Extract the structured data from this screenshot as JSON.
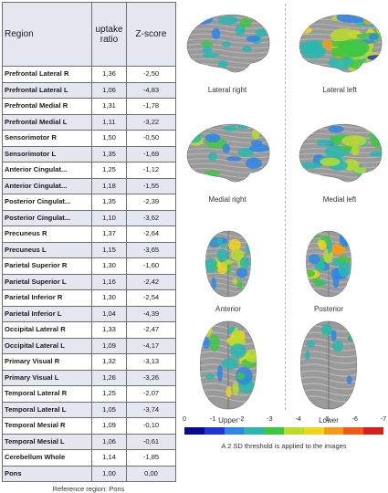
{
  "table": {
    "headers": [
      "Region",
      "uptake ratio",
      "Z-score"
    ],
    "rows": [
      [
        "Prefrontal Lateral R",
        "1,36",
        "-2,50"
      ],
      [
        "Prefrontal Lateral L",
        "1,06",
        "-4,83"
      ],
      [
        "Prefrontal Medial R",
        "1,31",
        "-1,78"
      ],
      [
        "Prefrontal Medial L",
        "1,11",
        "-3,22"
      ],
      [
        "Sensorimotor R",
        "1,50",
        "-0,50"
      ],
      [
        "Sensorimotor L",
        "1,35",
        "-1,69"
      ],
      [
        "Anterior Cingulat...",
        "1,25",
        "-1,12"
      ],
      [
        "Anterior Cingulat...",
        "1,18",
        "-1,55"
      ],
      [
        "Posterior Cingulat...",
        "1,35",
        "-2,39"
      ],
      [
        "Posterior Cingulat...",
        "1,10",
        "-3,62"
      ],
      [
        "Precuneus R",
        "1,37",
        "-2,64"
      ],
      [
        "Precuneus L",
        "1,15",
        "-3,65"
      ],
      [
        "Parietal Superior R",
        "1,30",
        "-1,60"
      ],
      [
        "Parietal Superior L",
        "1,16",
        "-2,42"
      ],
      [
        "Parietal Inferior R",
        "1,30",
        "-2,54"
      ],
      [
        "Parietal Inferior L",
        "1,04",
        "-4,39"
      ],
      [
        "Occipital Lateral R",
        "1,33",
        "-2,47"
      ],
      [
        "Occipital Lateral L",
        "1,09",
        "-4,17"
      ],
      [
        "Primary Visual R",
        "1,32",
        "-3,13"
      ],
      [
        "Primary Visual L",
        "1,26",
        "-3,26"
      ],
      [
        "Temporal Lateral R",
        "1,25",
        "-2,07"
      ],
      [
        "Temporal Lateral L",
        "1,05",
        "-3,74"
      ],
      [
        "Temporal Mesial R",
        "1,09",
        "-0,10"
      ],
      [
        "Temporal Mesial L",
        "1,06",
        "-0,61"
      ],
      [
        "Cerebellum Whole",
        "1,14",
        "-1,85"
      ],
      [
        "Pons",
        "1,00",
        "0,00"
      ]
    ],
    "reference_note": "Reference region: Pons"
  },
  "brain_views": [
    {
      "label": "Lateral right",
      "hot": 0.25
    },
    {
      "label": "Lateral left",
      "hot": 0.85
    },
    {
      "label": "Medial right",
      "hot": 0.3
    },
    {
      "label": "Medial left",
      "hot": 0.55
    },
    {
      "label": "Anterior",
      "hot": 0.55
    },
    {
      "label": "Posterior",
      "hot": 0.65
    },
    {
      "label": "Upper",
      "hot": 0.5
    },
    {
      "label": "Lower",
      "hot": 0.05
    }
  ],
  "colorbar": {
    "ticks": [
      "0",
      "-1",
      "-2",
      "-3",
      "-4",
      "-5",
      "-6",
      "-7"
    ],
    "colors": [
      "#0a0a8c",
      "#1f33d6",
      "#2f86e8",
      "#28b8b0",
      "#3fc743",
      "#b9dc2c",
      "#f0d51f",
      "#f59a1d",
      "#ee5a1a",
      "#d91f1a"
    ]
  },
  "threshold_note": "A 2 SD threshold is applied to the images"
}
